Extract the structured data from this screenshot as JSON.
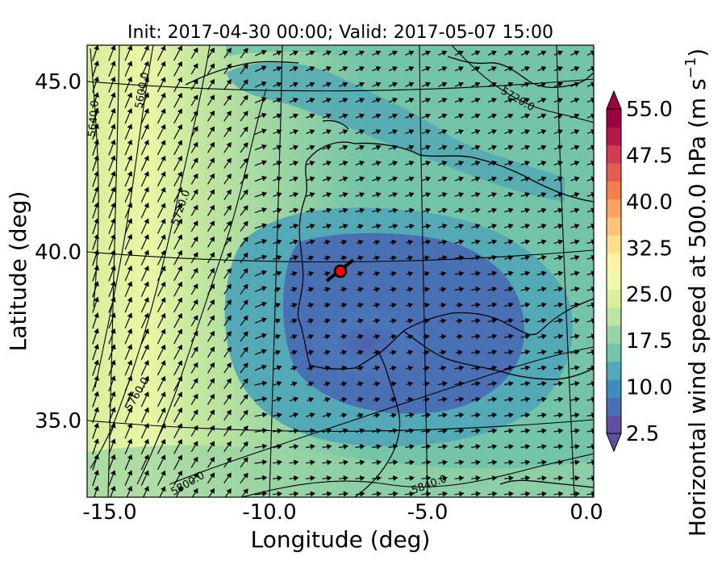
{
  "title": "Init: 2017-04-30 00:00; Valid: 2017-05-07 15:00",
  "xaxis": {
    "label": "Longitude (deg)",
    "ticks": [
      "-15.0",
      "-10.0",
      "-5.0",
      "0.0"
    ]
  },
  "yaxis": {
    "label": "Latitude (deg)",
    "ticks": [
      "45.0",
      "40.0",
      "35.0"
    ]
  },
  "colorbar": {
    "label": "Horizontal wind speed at 500.0 hPa (m s",
    "unit_exp": "−1",
    "unit_close": ")",
    "ticks": [
      "55.0",
      "47.5",
      "40.0",
      "32.5",
      "25.0",
      "17.5",
      "10.0",
      "2.5"
    ],
    "colors": [
      "#5e4fa2",
      "#4a70b4",
      "#3c8ebf",
      "#53a9b5",
      "#73c4a8",
      "#97d3a4",
      "#bde5a0",
      "#daf09b",
      "#f2f9ab",
      "#fdf1a6",
      "#fee08b",
      "#fdc473",
      "#fca25e",
      "#f67e4b",
      "#e65d4f",
      "#d33c4e",
      "#b81848",
      "#9e0142"
    ]
  },
  "contours": [
    "5600.0",
    "5640.0",
    "5720.0",
    "5720.0",
    "5760.0",
    "5800.0",
    "5840.0"
  ],
  "marker": {
    "lon": -7.6,
    "lat": 39.3,
    "color": "#ff0000"
  },
  "map_data": {
    "type": "filled-contour-map",
    "variable": "Horizontal wind speed at 500.0 hPa",
    "lon_range": [
      -16,
      0.4
    ],
    "lat_range": [
      32.7,
      46
    ],
    "vmin": 2.5,
    "vmax": 55.0,
    "features": [
      "wind vectors",
      "geopotential height contours",
      "coastlines",
      "graticule"
    ]
  }
}
